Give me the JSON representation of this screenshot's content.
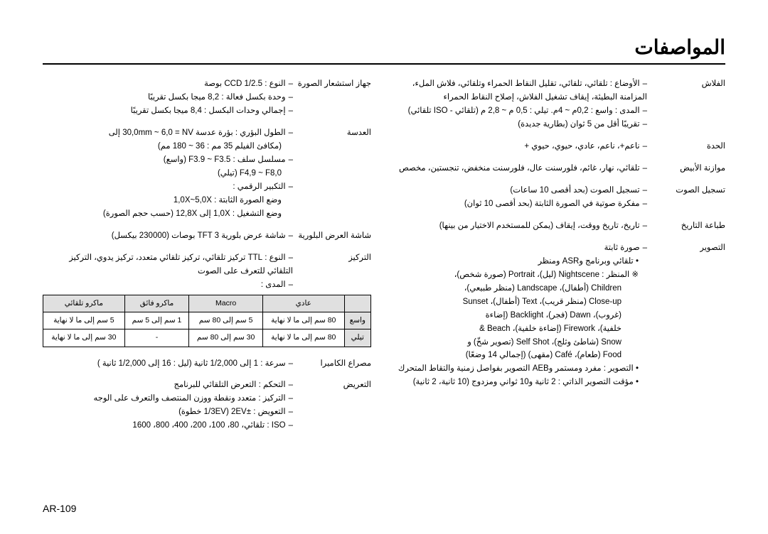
{
  "title": "المواصفات",
  "page_number": "AR-109",
  "right_col": {
    "sensor": {
      "label": "جهاز استشعار الصورة",
      "items": [
        "النوع : CCD 1/2.5 بوصة",
        "وحدة بكسل فعالة : 8,2 ميجا بكسل تقريبًا",
        "إجمالي وحدات البكسل : 8,4 ميجا بكسل تقريبًا"
      ]
    },
    "lens": {
      "label": "العدسة",
      "items": [
        "الطول البؤري : بؤرة عدسة 30,0mm ~ 6,0 = NV إلى",
        "(مكافئ الفيلم 35 مم : 36 ~ 180 مم)",
        "مسلسل سلف : F3.9 ~ F3.5 (واسع)",
        "F4,9 ~ F8,0 (تيلي)",
        "التكبير الرقمي :",
        "وضع الصورة الثابتة : 1,0X~5,0X",
        "وضع التشغيل : 1,0X إلى 12,8X (حسب حجم الصورة)"
      ]
    },
    "lcd": {
      "label": "شاشة العرض البلورية",
      "items": [
        "شاشة عرض بلورية TFT 3 بوصات (230000 بيكسل)"
      ]
    },
    "focus": {
      "label": "التركيز",
      "items": [
        "النوع : TTL تركيز تلقائي، تركيز تلقائي متعدد، تركيز يدوي، التركيز التلقائي للتعرف على الصوت",
        "المدى :"
      ]
    },
    "range_table": {
      "headers": [
        "",
        "عادي",
        "Macro",
        "ماكرو فائق",
        "ماكرو تلقائي"
      ],
      "rows": [
        [
          "واسع",
          "80 سم إلى ما لا نهاية",
          "5 سم إلى 80 سم",
          "1 سم إلى 5 سم",
          "5 سم إلى ما لا نهاية"
        ],
        [
          "تيلي",
          "80 سم إلى ما لا نهاية",
          "30 سم إلى 80 سم",
          "-",
          "30 سم إلى ما لا نهاية"
        ]
      ]
    },
    "shutter": {
      "label": "مصراع الكاميرا",
      "items": [
        "سرعة : 1 إلى 1/2,000 ثانية (ليل : 16 إلى 1/2,000 ثانية )"
      ]
    },
    "exposure": {
      "label": "التعريض",
      "items": [
        "التحكم : التعرض التلقائي للبرنامج",
        "التركيز : متعدد ونقطة ووزن المنتصف والتعرف على الوجه",
        "التعويض : ±2EV (1/3EV خطوة)",
        "ISO : تلقائي، 80، 100، 200، 400، 800، 1600"
      ]
    }
  },
  "left_col": {
    "flash": {
      "label": "الفلاش",
      "items": [
        "الأوضاع : تلقائي، تلقائي، تقليل النقاط الحمراء وتلقائي، فلاش الملء، المزامنة البطيئة، إيقاف تشغيل الفلاش، إصلاح النقاط الحمراء",
        "المدى : واسع : 0,2م ~ 4م. تيلي : 0,5 م ~ 2,8 م (تلقائي - ISO تلقائي)",
        "تقريبًا أقل من 5 ثوان (بطارية جديدة)"
      ]
    },
    "sharpness": {
      "label": "الحدة",
      "items": [
        "ناعم+، ناعم، عادي، حيوي، حيوي +"
      ]
    },
    "wb": {
      "label": "موازنة الأبيض",
      "items": [
        "تلقائي، نهار، غائم، فلورسنت عال، فلورسنت منخفض، تنجستين، مخصص"
      ]
    },
    "voice": {
      "label": "تسجيل الصوت",
      "items": [
        "تسجيل الصوت (بحد أقصى 10 ساعات)",
        "مفكرة صوتية في الصورة الثابتة (بحد أقصى 10 ثوان)"
      ]
    },
    "date": {
      "label": "طباعة التاريخ",
      "items": [
        "تاريخ، تاريخ ووقت، إيقاف (يمكن للمستخدم الاختيار من بينها)"
      ]
    },
    "shooting": {
      "label": "التصوير",
      "items": [
        "صورة ثابتة"
      ],
      "bullets": [
        "تلقائي وبرنامج وASR ومنظر"
      ],
      "scene_prefix": "※ المنظر : Nightscene (ليل)، Portrait (صورة شخص)،",
      "scenes": [
        "Children (أطفال)، Landscape (منظر طبيعي)،",
        "Close-up (منظر قريب)، Text (أطفال)، Sunset",
        "(غروب)، Dawn (فجر)، Backlight (إضاءة",
        "خلفية)، Firework (إضاءة خلفية)، Beach &",
        "Snow (شاطئ وثلج)، Self Shot (تصوير شخّ) و",
        "Food (طعام)، Café (مقهى) (إجمالي 14 وضعًا)"
      ],
      "bullets2": [
        "التصوير : مفرد ومستمر وAEB التصوير بفواصل زمنية والتقاط المتحرك",
        "مؤقت التصوير الذاتي : 2 ثانية و10 ثواني ومزدوج (10 ثانية، 2 ثانية)"
      ]
    }
  }
}
